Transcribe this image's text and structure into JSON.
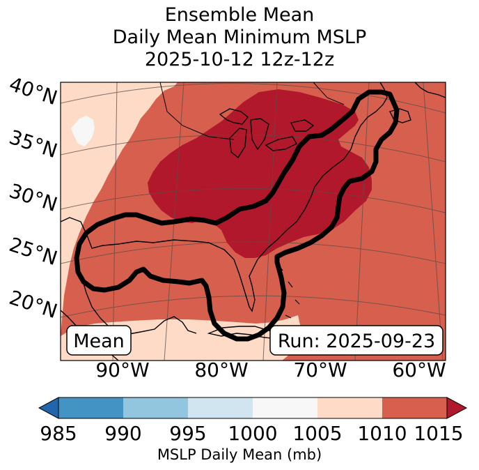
{
  "title": {
    "line1": "Ensemble Mean",
    "line2": "Daily Mean Minimum MSLP",
    "line3": "2025-10-12 12z-12z"
  },
  "map": {
    "lat_labels": [
      "40°N",
      "35°N",
      "30°N",
      "25°N",
      "20°N"
    ],
    "lon_labels": [
      "90°W",
      "80°W",
      "70°W",
      "60°W"
    ],
    "left_box": "Mean",
    "right_box": "Run: 2025-09-23"
  },
  "colorbar": {
    "title": "MSLP Daily Mean (mb)",
    "ticks": [
      "985",
      "990",
      "995",
      "1000",
      "1005",
      "1010",
      "1015"
    ],
    "colors": [
      "#2166ac",
      "#4393c3",
      "#92c5de",
      "#d1e5f0",
      "#f7f7f7",
      "#fddbc7",
      "#d6604d",
      "#b2182b"
    ]
  },
  "legend_colors": {
    "bin_1000_1005": "#f7f7f7",
    "bin_1005_1010": "#fddbc7",
    "bin_1010_1015": "#d6604d",
    "bin_over_1015": "#b2182b",
    "contour": "#000000"
  }
}
